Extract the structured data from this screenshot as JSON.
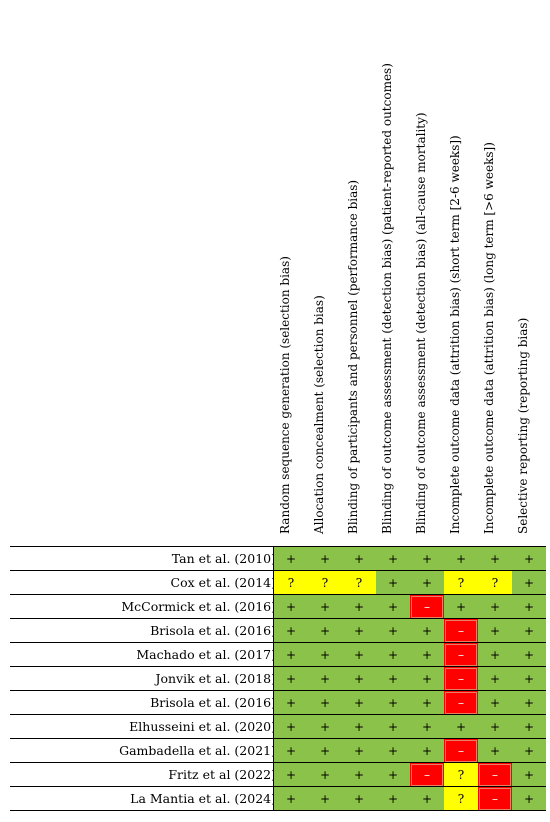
{
  "domains": [
    "Random sequence generation (selection bias)",
    "Allocation concealment (selection bias)",
    "Blinding of participants and personnel (performance bias)",
    "Blinding of outcome assessment (detection bias) (patient-reported outcomes)",
    "Blinding of outcome assessment (detection bias) (all-cause mortality)",
    "Incomplete outcome data (attrition bias) (short term [2-6 weeks])",
    "Incomplete outcome data (attrition bias) (long term [>6 weeks])",
    "Selective reporting (reporting bias)"
  ],
  "symbols": {
    "low": "+",
    "unclear": "?",
    "high": "–"
  },
  "colors": {
    "low": "#8bc34a",
    "unclear": "#ffff00",
    "high": "#ff0000"
  },
  "studies": [
    {
      "name": "Tan et al. (2010)",
      "ratings": [
        "low",
        "low",
        "low",
        "low",
        "low",
        "low",
        "low",
        "low"
      ]
    },
    {
      "name": "Cox et al. (2014)",
      "ratings": [
        "unclear",
        "unclear",
        "unclear",
        "low",
        "low",
        "unclear",
        "unclear",
        "low"
      ]
    },
    {
      "name": "McCormick et al. (2016)",
      "ratings": [
        "low",
        "low",
        "low",
        "low",
        "high",
        "low",
        "low",
        "low"
      ]
    },
    {
      "name": "Brisola et al. (2016)",
      "ratings": [
        "low",
        "low",
        "low",
        "low",
        "low",
        "high",
        "low",
        "low"
      ]
    },
    {
      "name": "Machado et al. (2017)",
      "ratings": [
        "low",
        "low",
        "low",
        "low",
        "low",
        "high",
        "low",
        "low"
      ]
    },
    {
      "name": "Jonvik et al. (2018)",
      "ratings": [
        "low",
        "low",
        "low",
        "low",
        "low",
        "high",
        "low",
        "low"
      ]
    },
    {
      "name": "Brisola et al. (2016)",
      "ratings": [
        "low",
        "low",
        "low",
        "low",
        "low",
        "high",
        "low",
        "low"
      ]
    },
    {
      "name": "Elhusseini et al. (2020)",
      "ratings": [
        "low",
        "low",
        "low",
        "low",
        "low",
        "low",
        "low",
        "low"
      ]
    },
    {
      "name": "Gambadella et al. (2021)",
      "ratings": [
        "low",
        "low",
        "low",
        "low",
        "low",
        "high",
        "low",
        "low"
      ]
    },
    {
      "name": "Fritz et al (2022)",
      "ratings": [
        "low",
        "low",
        "low",
        "low",
        "high",
        "unclear",
        "high",
        "low"
      ]
    },
    {
      "name": "La Mantia et al. (2024)",
      "ratings": [
        "low",
        "low",
        "low",
        "low",
        "low",
        "unclear",
        "high",
        "low"
      ]
    }
  ]
}
